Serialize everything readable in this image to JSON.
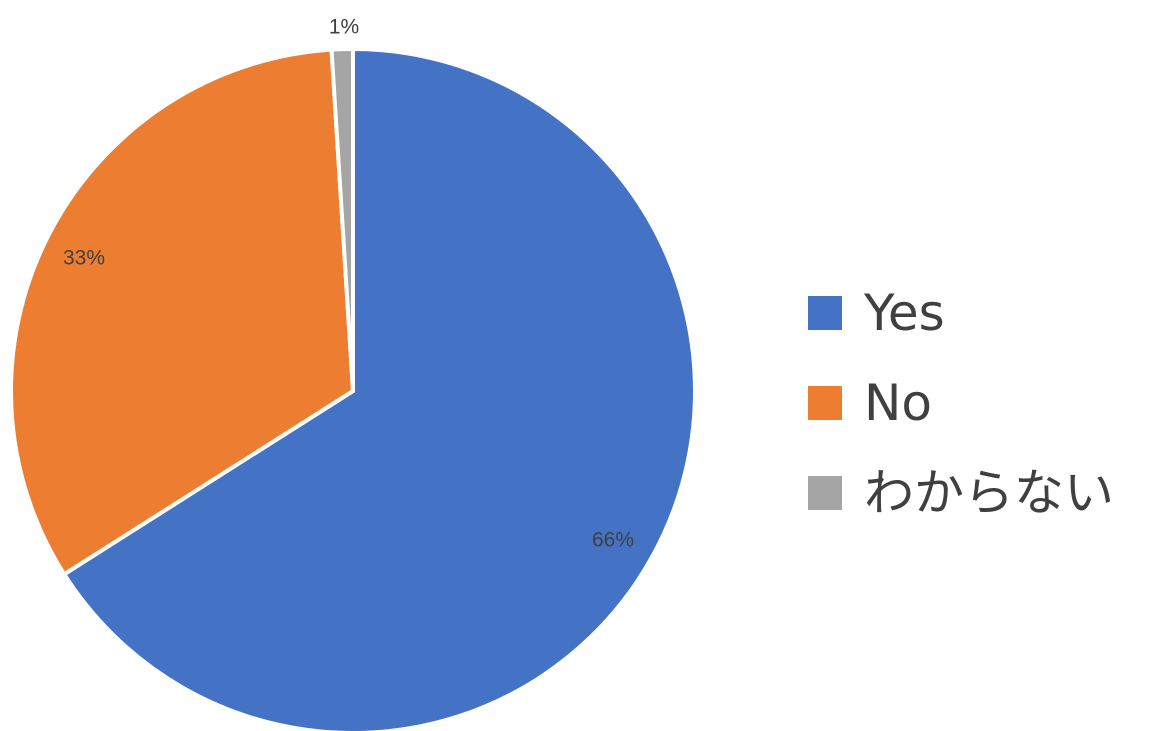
{
  "chart_data": {
    "type": "pie",
    "categories": [
      "Yes",
      "No",
      "わからない"
    ],
    "values": [
      66,
      33,
      1
    ],
    "data_labels": [
      "66%",
      "33%",
      "1%"
    ],
    "colors": [
      "#4472C4",
      "#ED7D31",
      "#A5A5A5"
    ],
    "start_angle": "12 o'clock",
    "direction": "clockwise",
    "legend_position": "right",
    "title": ""
  }
}
